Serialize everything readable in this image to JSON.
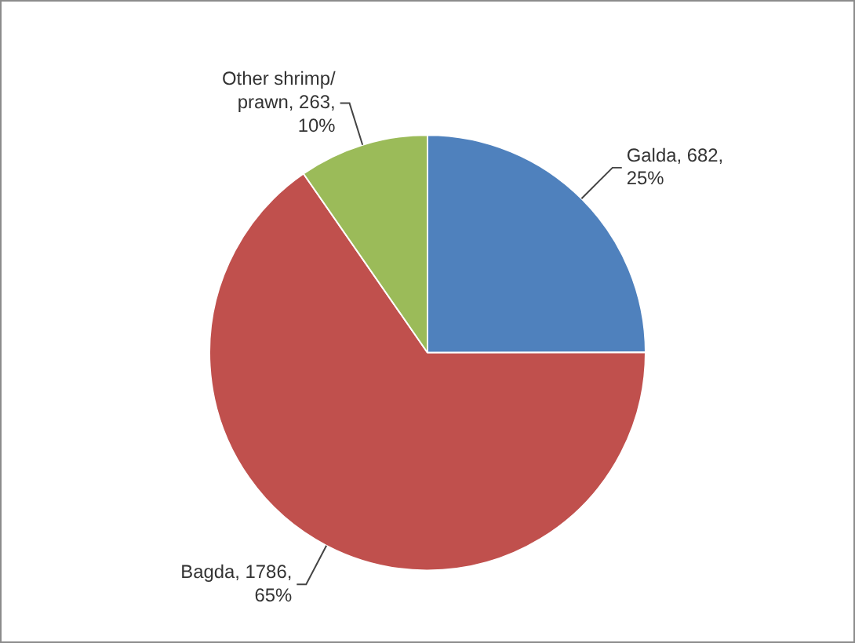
{
  "chart_data": {
    "type": "pie",
    "categories": [
      "Galda",
      "Bagda",
      "Other shrimp/ prawn"
    ],
    "values": [
      682,
      1786,
      263
    ],
    "colors": [
      "#4f81bd",
      "#c0504d",
      "#9bbb59"
    ],
    "value_labels": [
      "682, 25%",
      "1786, 65%",
      "263, 10%"
    ],
    "legend": false
  }
}
